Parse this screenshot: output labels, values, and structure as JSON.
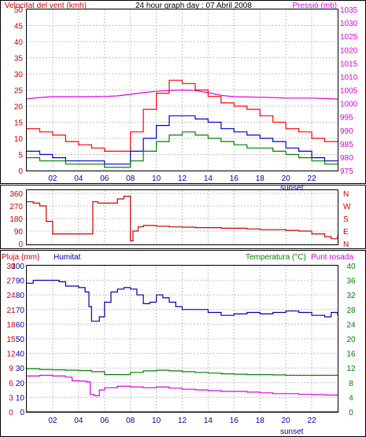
{
  "chart_data": [
    {
      "type": "line",
      "panel": "wind-pressure",
      "title": "24 hour graph day : 07 Abril 2008",
      "left_axis_label": "Velocitat del vent (kmh)",
      "right_axis_label": "Pressió (mb)",
      "left_ylim": [
        0,
        50
      ],
      "left_ticks": [
        "0",
        "5",
        "10",
        "15",
        "20",
        "25",
        "30",
        "35",
        "40",
        "45",
        "50"
      ],
      "right_ylim": [
        975,
        1035
      ],
      "right_ticks": [
        "975",
        "980",
        "985",
        "990",
        "995",
        "1000",
        "1005",
        "1010",
        "1015",
        "1020",
        "1025",
        "1030",
        "1035"
      ],
      "x_ticks": [
        "02",
        "04",
        "06",
        "08",
        "10",
        "12",
        "14",
        "16",
        "18",
        "20",
        "22"
      ],
      "x_annotation": "sunset",
      "grid": true,
      "colors": {
        "gust": "#ff0000",
        "wind": "#0000cc",
        "wind_avg": "#008000",
        "pressure": "#dd00dd"
      },
      "series": [
        {
          "axis": "right",
          "x": [
            0,
            1,
            2,
            3,
            4,
            5,
            6,
            7,
            8,
            9,
            10,
            11,
            12,
            13,
            14,
            15,
            16,
            17,
            18,
            19,
            20,
            21,
            22,
            23,
            24
          ],
          "values": [
            1001.7,
            1002.2,
            1002.5,
            1002.5,
            1002.5,
            1002.5,
            1002.6,
            1002.8,
            1003.4,
            1004.0,
            1004.5,
            1004.8,
            1005.0,
            1004.8,
            1004.0,
            1003.0,
            1002.5,
            1002.4,
            1002.3,
            1002.2,
            1002.0,
            1002.0,
            1002.0,
            1001.8,
            1001.6
          ]
        },
        {
          "axis": "left",
          "x": [
            0,
            1,
            2,
            3,
            4,
            5,
            6,
            7,
            8,
            9,
            10,
            11,
            12,
            13,
            14,
            15,
            16,
            17,
            18,
            19,
            20,
            21,
            22,
            23,
            24
          ],
          "values": [
            13,
            12,
            11,
            9,
            8,
            7,
            6,
            6,
            12,
            19,
            24,
            28,
            27,
            25,
            23,
            21,
            20,
            19,
            17,
            15,
            13,
            12,
            10,
            9,
            9
          ]
        },
        {
          "axis": "left",
          "x": [
            0,
            1,
            2,
            3,
            4,
            5,
            6,
            7,
            8,
            9,
            10,
            11,
            12,
            13,
            14,
            15,
            16,
            17,
            18,
            19,
            20,
            21,
            22,
            23,
            24
          ],
          "values": [
            6,
            5,
            4,
            3,
            3,
            3,
            2,
            2,
            6,
            10,
            14,
            17,
            17,
            16,
            15,
            13,
            12,
            11,
            10,
            9,
            7,
            6,
            4,
            3,
            3
          ]
        },
        {
          "axis": "left",
          "x": [
            0,
            1,
            2,
            3,
            4,
            5,
            6,
            7,
            8,
            9,
            10,
            11,
            12,
            13,
            14,
            15,
            16,
            17,
            18,
            19,
            20,
            21,
            22,
            23,
            24
          ],
          "values": [
            4,
            3,
            3,
            2,
            2,
            2,
            1,
            1,
            3,
            6,
            9,
            11,
            12,
            11,
            10,
            9,
            8,
            7,
            7,
            6,
            5,
            4,
            3,
            2,
            2
          ]
        }
      ]
    },
    {
      "type": "line",
      "panel": "wind-direction",
      "left_ylim": [
        0,
        360
      ],
      "left_ticks": [
        "0",
        "90",
        "180",
        "270",
        "360"
      ],
      "right_ticks": [
        "N",
        "E",
        "S",
        "W",
        "N"
      ],
      "grid": true,
      "color": "#cc0000",
      "series": [
        {
          "x": [
            0,
            0.5,
            1,
            1.5,
            2,
            2.5,
            3,
            3.5,
            4,
            4.5,
            5,
            5.1,
            5.5,
            6,
            6.5,
            7,
            7.5,
            7.9,
            8,
            8.2,
            8.6,
            9,
            10,
            11,
            12,
            13,
            14,
            15,
            16,
            17,
            18,
            19,
            20,
            21,
            22,
            23,
            23.5,
            24
          ],
          "values": [
            300,
            290,
            270,
            160,
            70,
            70,
            70,
            70,
            70,
            70,
            70,
            300,
            290,
            290,
            290,
            320,
            340,
            340,
            20,
            90,
            120,
            130,
            125,
            120,
            118,
            115,
            115,
            110,
            110,
            105,
            100,
            100,
            95,
            90,
            70,
            50,
            35,
            60
          ]
        }
      ]
    },
    {
      "type": "line",
      "panel": "rain-humidity-temperature",
      "left_axis_label": "Pluja (mm)",
      "humidity_label": "Humitat",
      "right_axis_label": "Temperatura (°C)",
      "dewpoint_label": "Punt rosada",
      "left_ylim": [
        0,
        30
      ],
      "left_ticks": [
        "0",
        "3",
        "6",
        "9",
        "12",
        "15",
        "18",
        "21",
        "24",
        "27",
        "30"
      ],
      "humidity_ticks": [
        "0",
        "10",
        "20",
        "30",
        "40",
        "50",
        "60",
        "70",
        "80",
        "90",
        "100"
      ],
      "right_ylim": [
        0,
        40
      ],
      "right_ticks": [
        "0",
        "4",
        "8",
        "12",
        "16",
        "20",
        "24",
        "28",
        "32",
        "36",
        "40"
      ],
      "x_ticks": [
        "02",
        "04",
        "06",
        "08",
        "10",
        "12",
        "14",
        "16",
        "18",
        "20",
        "22"
      ],
      "x_annotation": "sunset",
      "grid": true,
      "colors": {
        "rain": "#cc0000",
        "humidity": "#0000aa",
        "temperature": "#008000",
        "dewpoint": "#dd00dd"
      },
      "series": [
        {
          "x": [
            0,
            24
          ],
          "values": [
            0,
            0
          ]
        },
        {
          "x": [
            0,
            0.5,
            1,
            2,
            2.5,
            3,
            4,
            4.5,
            4.8,
            5,
            5.3,
            5.6,
            6,
            6.5,
            7,
            7.5,
            8,
            8.5,
            9,
            9.5,
            10,
            10.5,
            11,
            11.5,
            12,
            13,
            14,
            15,
            16,
            17,
            18,
            19,
            20,
            21,
            22,
            23,
            23.5,
            24
          ],
          "values": [
            88,
            90,
            90,
            90,
            89,
            86,
            85,
            82,
            72,
            62,
            62,
            65,
            75,
            82,
            84,
            85,
            84,
            80,
            74,
            75,
            80,
            78,
            75,
            72,
            70,
            70,
            68,
            66,
            67,
            68,
            67,
            68,
            69,
            68,
            66,
            65,
            68,
            66
          ]
        },
        {
          "x": [
            0,
            1,
            2,
            3,
            4,
            5,
            6,
            7,
            8,
            9,
            10,
            11,
            12,
            13,
            14,
            15,
            16,
            17,
            18,
            19,
            20,
            21,
            22,
            23,
            24
          ],
          "values": [
            11.8,
            11.6,
            11.5,
            11.4,
            11.3,
            11.0,
            10.2,
            10.2,
            10.8,
            11.2,
            11.4,
            11.2,
            11.0,
            10.8,
            10.6,
            10.4,
            10.3,
            10.2,
            10.2,
            10.1,
            10.0,
            10.0,
            10.0,
            10.0,
            10.0
          ]
        },
        {
          "x": [
            0,
            1,
            2,
            3,
            3.5,
            4,
            4.6,
            4.9,
            5.2,
            5.6,
            6,
            7,
            8,
            9,
            10,
            11,
            12,
            13,
            14,
            15,
            16,
            17,
            18,
            19,
            20,
            21,
            22,
            23,
            24
          ],
          "values": [
            9.8,
            10.0,
            9.8,
            9.5,
            8.5,
            8.4,
            8.2,
            4.8,
            4.4,
            6.0,
            6.6,
            7.0,
            6.8,
            6.6,
            6.8,
            6.5,
            6.2,
            6.0,
            5.8,
            5.6,
            5.6,
            5.4,
            5.2,
            5.0,
            5.0,
            4.8,
            4.7,
            4.6,
            4.8
          ]
        }
      ]
    }
  ]
}
